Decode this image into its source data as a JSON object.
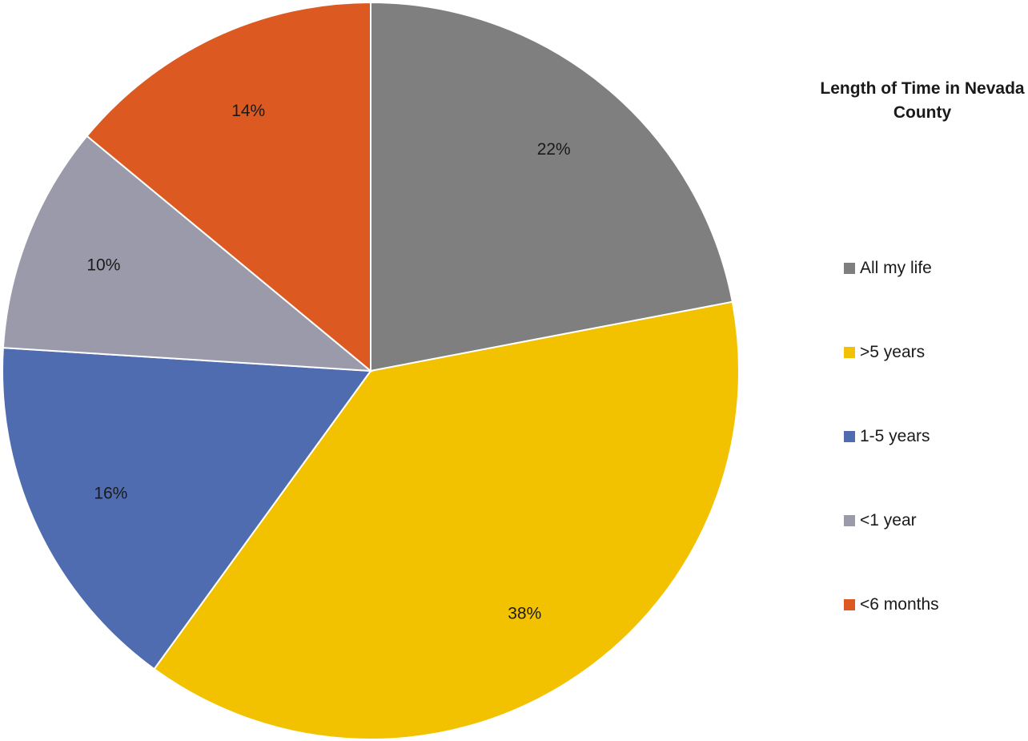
{
  "chart_data": {
    "type": "pie",
    "title": "Length of Time in Nevada County",
    "legend_position": "right",
    "labels": [
      "All my life",
      ">5 years",
      "1-5 years",
      "<1 year",
      "<6 months"
    ],
    "values": [
      22,
      38,
      16,
      10,
      14
    ],
    "value_labels": [
      "22%",
      "38%",
      "16%",
      "10%",
      "14%"
    ],
    "colors": [
      "#7f7f7f",
      "#f2c100",
      "#506cb0",
      "#9a9aaa",
      "#dc5a22"
    ]
  }
}
